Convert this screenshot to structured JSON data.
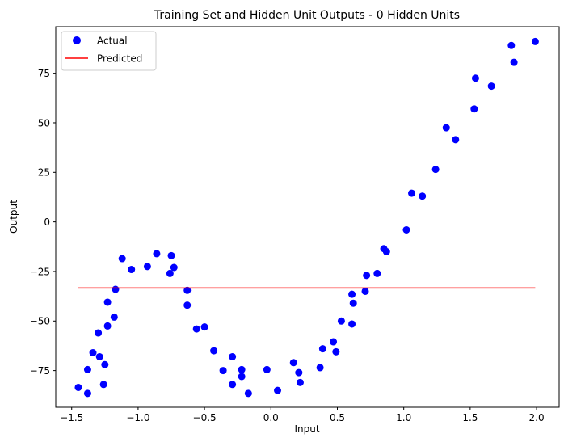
{
  "chart_data": {
    "type": "scatter",
    "title": "Training Set and Hidden Unit Outputs - 0 Hidden Units",
    "xlabel": "Input",
    "ylabel": "Output",
    "xlim": [
      -1.62,
      2.17
    ],
    "ylim": [
      -93.5,
      98.5
    ],
    "xticks": [
      -1.5,
      -1.0,
      -0.5,
      0.0,
      0.5,
      1.0,
      1.5,
      2.0
    ],
    "xtick_labels": [
      "−1.5",
      "−1.0",
      "−0.5",
      "0.0",
      "0.5",
      "1.0",
      "1.5",
      "2.0"
    ],
    "yticks": [
      -75,
      -50,
      -25,
      0,
      25,
      50,
      75
    ],
    "ytick_labels": [
      "−75",
      "−50",
      "−25",
      "0",
      "25",
      "50",
      "75"
    ],
    "grid": false,
    "legend": "top-left",
    "series": [
      {
        "name": "Actual",
        "kind": "scatter",
        "color": "#0000ff",
        "points": [
          [
            -1.45,
            -83.5
          ],
          [
            -1.38,
            -86.5
          ],
          [
            -1.38,
            -74.5
          ],
          [
            -1.34,
            -66.0
          ],
          [
            -1.3,
            -56.0
          ],
          [
            -1.29,
            -68.0
          ],
          [
            -1.26,
            -82.0
          ],
          [
            -1.25,
            -72.0
          ],
          [
            -1.23,
            -52.5
          ],
          [
            -1.23,
            -40.5
          ],
          [
            -1.18,
            -48.0
          ],
          [
            -1.17,
            -34.0
          ],
          [
            -1.12,
            -18.5
          ],
          [
            -1.05,
            -24.0
          ],
          [
            -0.93,
            -22.5
          ],
          [
            -0.86,
            -16.0
          ],
          [
            -0.76,
            -26.0
          ],
          [
            -0.75,
            -17.0
          ],
          [
            -0.73,
            -23.0
          ],
          [
            -0.63,
            -42.0
          ],
          [
            -0.63,
            -34.5
          ],
          [
            -0.56,
            -54.0
          ],
          [
            -0.5,
            -53.0
          ],
          [
            -0.43,
            -65.0
          ],
          [
            -0.36,
            -75.0
          ],
          [
            -0.29,
            -68.0
          ],
          [
            -0.29,
            -82.0
          ],
          [
            -0.22,
            -74.5
          ],
          [
            -0.22,
            -78.0
          ],
          [
            -0.17,
            -86.5
          ],
          [
            -0.03,
            -74.5
          ],
          [
            0.05,
            -85.0
          ],
          [
            0.17,
            -71.0
          ],
          [
            0.21,
            -76.0
          ],
          [
            0.22,
            -81.0
          ],
          [
            0.37,
            -73.5
          ],
          [
            0.39,
            -64.0
          ],
          [
            0.47,
            -60.5
          ],
          [
            0.49,
            -65.5
          ],
          [
            0.53,
            -50.0
          ],
          [
            0.61,
            -51.5
          ],
          [
            0.61,
            -36.5
          ],
          [
            0.62,
            -41.0
          ],
          [
            0.71,
            -35.0
          ],
          [
            0.72,
            -27.0
          ],
          [
            0.8,
            -26.0
          ],
          [
            0.85,
            -13.5
          ],
          [
            0.87,
            -15.0
          ],
          [
            1.02,
            -4.0
          ],
          [
            1.06,
            14.5
          ],
          [
            1.14,
            13.0
          ],
          [
            1.24,
            26.5
          ],
          [
            1.32,
            47.5
          ],
          [
            1.39,
            41.5
          ],
          [
            1.53,
            57.0
          ],
          [
            1.54,
            72.5
          ],
          [
            1.66,
            68.5
          ],
          [
            1.81,
            89.0
          ],
          [
            1.83,
            80.5
          ],
          [
            1.99,
            91.0
          ]
        ]
      },
      {
        "name": "Predicted",
        "kind": "line",
        "color": "#ff0000",
        "points": [
          [
            -1.45,
            -33.3
          ],
          [
            1.99,
            -33.3
          ]
        ]
      }
    ]
  }
}
